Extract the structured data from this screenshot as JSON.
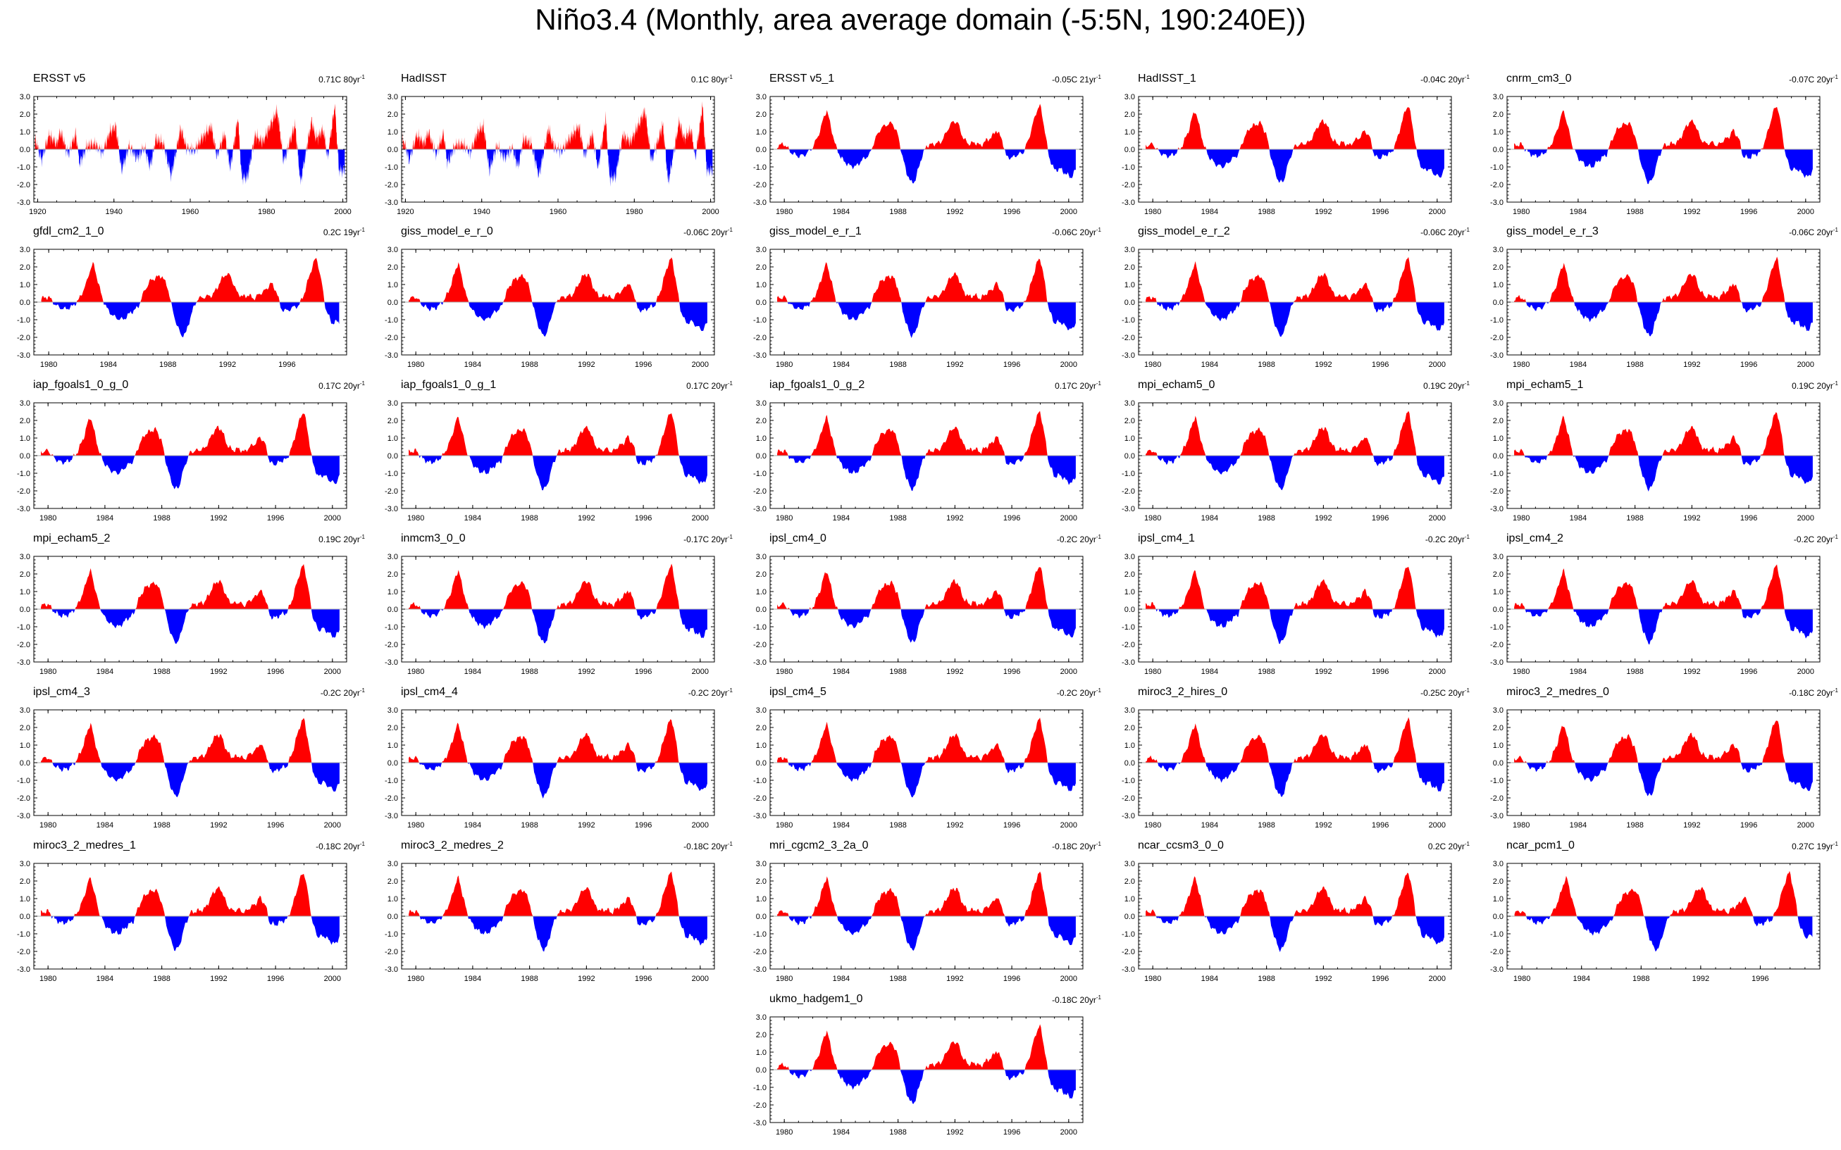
{
  "title": "Niño3.4 (Monthly, area average domain (-5:5N, 190:240E))",
  "colors": {
    "positive": "#ff0000",
    "negative": "#0000ff",
    "axis": "#000000",
    "zero": "#aaaaaa"
  },
  "chart_data": [
    {
      "type": "area",
      "title": "ERSST v5",
      "trend": "0.71C 80yr",
      "trend_unit": "-1",
      "xlim": [
        1919,
        2001
      ],
      "xticks": [
        "1920",
        "1940",
        "1960",
        "1980",
        "2000"
      ],
      "ylim": [
        -3,
        3
      ],
      "yticks": [
        "3.0",
        "2.0",
        "1.0",
        "0.0",
        "-1.0",
        "-2.0",
        "-3.0"
      ],
      "series": "nino34_1920_2000"
    },
    {
      "type": "area",
      "title": "HadISST",
      "trend": "0.1C 80yr",
      "trend_unit": "-1",
      "xlim": [
        1919,
        2001
      ],
      "xticks": [
        "1920",
        "1940",
        "1960",
        "1980",
        "2000"
      ],
      "ylim": [
        -3,
        3
      ],
      "yticks": [
        "3.0",
        "2.0",
        "1.0",
        "0.0",
        "-1.0",
        "-2.0",
        "-3.0"
      ],
      "series": "nino34_1920_2000"
    },
    {
      "type": "area",
      "title": "ERSST v5_1",
      "trend": "-0.05C 21yr",
      "trend_unit": "-1",
      "xlim": [
        1979,
        2001
      ],
      "xticks": [
        "1980",
        "1984",
        "1988",
        "1992",
        "1996",
        "2000"
      ],
      "ylim": [
        -3,
        3
      ],
      "yticks": [
        "3.0",
        "2.0",
        "1.0",
        "0.0",
        "-1.0",
        "-2.0",
        "-3.0"
      ],
      "series": "nino34_1980_2000"
    },
    {
      "type": "area",
      "title": "HadISST_1",
      "trend": "-0.04C 20yr",
      "trend_unit": "-1",
      "xlim": [
        1979,
        2001
      ],
      "xticks": [
        "1980",
        "1984",
        "1988",
        "1992",
        "1996",
        "2000"
      ],
      "ylim": [
        -3,
        3
      ],
      "yticks": [
        "3.0",
        "2.0",
        "1.0",
        "0.0",
        "-1.0",
        "-2.0",
        "-3.0"
      ],
      "series": "nino34_1980_2000"
    },
    {
      "type": "area",
      "title": "cnrm_cm3_0",
      "trend": "-0.07C 20yr",
      "trend_unit": "-1",
      "xlim": [
        1979,
        2001
      ],
      "xticks": [
        "1980",
        "1984",
        "1988",
        "1992",
        "1996",
        "2000"
      ],
      "ylim": [
        -3,
        3
      ],
      "yticks": [
        "3.0",
        "2.0",
        "1.0",
        "0.0",
        "-1.0",
        "-2.0",
        "-3.0"
      ],
      "series": "nino34_1980_2000"
    },
    {
      "type": "area",
      "title": "gfdl_cm2_1_0",
      "trend": "0.2C 19yr",
      "trend_unit": "-1",
      "xlim": [
        1979,
        2000
      ],
      "xticks": [
        "1980",
        "1984",
        "1988",
        "1992",
        "1996"
      ],
      "ylim": [
        -3,
        3
      ],
      "yticks": [
        "3.0",
        "2.0",
        "1.0",
        "0.0",
        "-1.0",
        "-2.0",
        "-3.0"
      ],
      "series": "nino34_1980_2000"
    },
    {
      "type": "area",
      "title": "giss_model_e_r_0",
      "trend": "-0.06C 20yr",
      "trend_unit": "-1",
      "xlim": [
        1979,
        2001
      ],
      "xticks": [
        "1980",
        "1984",
        "1988",
        "1992",
        "1996",
        "2000"
      ],
      "ylim": [
        -3,
        3
      ],
      "yticks": [
        "3.0",
        "2.0",
        "1.0",
        "0.0",
        "-1.0",
        "-2.0",
        "-3.0"
      ],
      "series": "nino34_1980_2000"
    },
    {
      "type": "area",
      "title": "giss_model_e_r_1",
      "trend": "-0.06C 20yr",
      "trend_unit": "-1",
      "xlim": [
        1979,
        2001
      ],
      "xticks": [
        "1980",
        "1984",
        "1988",
        "1992",
        "1996",
        "2000"
      ],
      "ylim": [
        -3,
        3
      ],
      "yticks": [
        "3.0",
        "2.0",
        "1.0",
        "0.0",
        "-1.0",
        "-2.0",
        "-3.0"
      ],
      "series": "nino34_1980_2000"
    },
    {
      "type": "area",
      "title": "giss_model_e_r_2",
      "trend": "-0.06C 20yr",
      "trend_unit": "-1",
      "xlim": [
        1979,
        2001
      ],
      "xticks": [
        "1980",
        "1984",
        "1988",
        "1992",
        "1996",
        "2000"
      ],
      "ylim": [
        -3,
        3
      ],
      "yticks": [
        "3.0",
        "2.0",
        "1.0",
        "0.0",
        "-1.0",
        "-2.0",
        "-3.0"
      ],
      "series": "nino34_1980_2000"
    },
    {
      "type": "area",
      "title": "giss_model_e_r_3",
      "trend": "-0.06C 20yr",
      "trend_unit": "-1",
      "xlim": [
        1979,
        2001
      ],
      "xticks": [
        "1980",
        "1984",
        "1988",
        "1992",
        "1996",
        "2000"
      ],
      "ylim": [
        -3,
        3
      ],
      "yticks": [
        "3.0",
        "2.0",
        "1.0",
        "0.0",
        "-1.0",
        "-2.0",
        "-3.0"
      ],
      "series": "nino34_1980_2000"
    },
    {
      "type": "area",
      "title": "iap_fgoals1_0_g_0",
      "trend": "0.17C 20yr",
      "trend_unit": "-1",
      "xlim": [
        1979,
        2001
      ],
      "xticks": [
        "1980",
        "1984",
        "1988",
        "1992",
        "1996",
        "2000"
      ],
      "ylim": [
        -3,
        3
      ],
      "yticks": [
        "3.0",
        "2.0",
        "1.0",
        "0.0",
        "-1.0",
        "-2.0",
        "-3.0"
      ],
      "series": "nino34_1980_2000"
    },
    {
      "type": "area",
      "title": "iap_fgoals1_0_g_1",
      "trend": "0.17C 20yr",
      "trend_unit": "-1",
      "xlim": [
        1979,
        2001
      ],
      "xticks": [
        "1980",
        "1984",
        "1988",
        "1992",
        "1996",
        "2000"
      ],
      "ylim": [
        -3,
        3
      ],
      "yticks": [
        "3.0",
        "2.0",
        "1.0",
        "0.0",
        "-1.0",
        "-2.0",
        "-3.0"
      ],
      "series": "nino34_1980_2000"
    },
    {
      "type": "area",
      "title": "iap_fgoals1_0_g_2",
      "trend": "0.17C 20yr",
      "trend_unit": "-1",
      "xlim": [
        1979,
        2001
      ],
      "xticks": [
        "1980",
        "1984",
        "1988",
        "1992",
        "1996",
        "2000"
      ],
      "ylim": [
        -3,
        3
      ],
      "yticks": [
        "3.0",
        "2.0",
        "1.0",
        "0.0",
        "-1.0",
        "-2.0",
        "-3.0"
      ],
      "series": "nino34_1980_2000"
    },
    {
      "type": "area",
      "title": "mpi_echam5_0",
      "trend": "0.19C 20yr",
      "trend_unit": "-1",
      "xlim": [
        1979,
        2001
      ],
      "xticks": [
        "1980",
        "1984",
        "1988",
        "1992",
        "1996",
        "2000"
      ],
      "ylim": [
        -3,
        3
      ],
      "yticks": [
        "3.0",
        "2.0",
        "1.0",
        "0.0",
        "-1.0",
        "-2.0",
        "-3.0"
      ],
      "series": "nino34_1980_2000"
    },
    {
      "type": "area",
      "title": "mpi_echam5_1",
      "trend": "0.19C 20yr",
      "trend_unit": "-1",
      "xlim": [
        1979,
        2001
      ],
      "xticks": [
        "1980",
        "1984",
        "1988",
        "1992",
        "1996",
        "2000"
      ],
      "ylim": [
        -3,
        3
      ],
      "yticks": [
        "3.0",
        "2.0",
        "1.0",
        "0.0",
        "-1.0",
        "-2.0",
        "-3.0"
      ],
      "series": "nino34_1980_2000"
    },
    {
      "type": "area",
      "title": "mpi_echam5_2",
      "trend": "0.19C 20yr",
      "trend_unit": "-1",
      "xlim": [
        1979,
        2001
      ],
      "xticks": [
        "1980",
        "1984",
        "1988",
        "1992",
        "1996",
        "2000"
      ],
      "ylim": [
        -3,
        3
      ],
      "yticks": [
        "3.0",
        "2.0",
        "1.0",
        "0.0",
        "-1.0",
        "-2.0",
        "-3.0"
      ],
      "series": "nino34_1980_2000"
    },
    {
      "type": "area",
      "title": "inmcm3_0_0",
      "trend": "-0.17C 20yr",
      "trend_unit": "-1",
      "xlim": [
        1979,
        2001
      ],
      "xticks": [
        "1980",
        "1984",
        "1988",
        "1992",
        "1996",
        "2000"
      ],
      "ylim": [
        -3,
        3
      ],
      "yticks": [
        "3.0",
        "2.0",
        "1.0",
        "0.0",
        "-1.0",
        "-2.0",
        "-3.0"
      ],
      "series": "nino34_1980_2000"
    },
    {
      "type": "area",
      "title": "ipsl_cm4_0",
      "trend": "-0.2C 20yr",
      "trend_unit": "-1",
      "xlim": [
        1979,
        2001
      ],
      "xticks": [
        "1980",
        "1984",
        "1988",
        "1992",
        "1996",
        "2000"
      ],
      "ylim": [
        -3,
        3
      ],
      "yticks": [
        "3.0",
        "2.0",
        "1.0",
        "0.0",
        "-1.0",
        "-2.0",
        "-3.0"
      ],
      "series": "nino34_1980_2000"
    },
    {
      "type": "area",
      "title": "ipsl_cm4_1",
      "trend": "-0.2C 20yr",
      "trend_unit": "-1",
      "xlim": [
        1979,
        2001
      ],
      "xticks": [
        "1980",
        "1984",
        "1988",
        "1992",
        "1996",
        "2000"
      ],
      "ylim": [
        -3,
        3
      ],
      "yticks": [
        "3.0",
        "2.0",
        "1.0",
        "0.0",
        "-1.0",
        "-2.0",
        "-3.0"
      ],
      "series": "nino34_1980_2000"
    },
    {
      "type": "area",
      "title": "ipsl_cm4_2",
      "trend": "-0.2C 20yr",
      "trend_unit": "-1",
      "xlim": [
        1979,
        2001
      ],
      "xticks": [
        "1980",
        "1984",
        "1988",
        "1992",
        "1996",
        "2000"
      ],
      "ylim": [
        -3,
        3
      ],
      "yticks": [
        "3.0",
        "2.0",
        "1.0",
        "0.0",
        "-1.0",
        "-2.0",
        "-3.0"
      ],
      "series": "nino34_1980_2000"
    },
    {
      "type": "area",
      "title": "ipsl_cm4_3",
      "trend": "-0.2C 20yr",
      "trend_unit": "-1",
      "xlim": [
        1979,
        2001
      ],
      "xticks": [
        "1980",
        "1984",
        "1988",
        "1992",
        "1996",
        "2000"
      ],
      "ylim": [
        -3,
        3
      ],
      "yticks": [
        "3.0",
        "2.0",
        "1.0",
        "0.0",
        "-1.0",
        "-2.0",
        "-3.0"
      ],
      "series": "nino34_1980_2000"
    },
    {
      "type": "area",
      "title": "ipsl_cm4_4",
      "trend": "-0.2C 20yr",
      "trend_unit": "-1",
      "xlim": [
        1979,
        2001
      ],
      "xticks": [
        "1980",
        "1984",
        "1988",
        "1992",
        "1996",
        "2000"
      ],
      "ylim": [
        -3,
        3
      ],
      "yticks": [
        "3.0",
        "2.0",
        "1.0",
        "0.0",
        "-1.0",
        "-2.0",
        "-3.0"
      ],
      "series": "nino34_1980_2000"
    },
    {
      "type": "area",
      "title": "ipsl_cm4_5",
      "trend": "-0.2C 20yr",
      "trend_unit": "-1",
      "xlim": [
        1979,
        2001
      ],
      "xticks": [
        "1980",
        "1984",
        "1988",
        "1992",
        "1996",
        "2000"
      ],
      "ylim": [
        -3,
        3
      ],
      "yticks": [
        "3.0",
        "2.0",
        "1.0",
        "0.0",
        "-1.0",
        "-2.0",
        "-3.0"
      ],
      "series": "nino34_1980_2000"
    },
    {
      "type": "area",
      "title": "miroc3_2_hires_0",
      "trend": "-0.25C 20yr",
      "trend_unit": "-1",
      "xlim": [
        1979,
        2001
      ],
      "xticks": [
        "1980",
        "1984",
        "1988",
        "1992",
        "1996",
        "2000"
      ],
      "ylim": [
        -3,
        3
      ],
      "yticks": [
        "3.0",
        "2.0",
        "1.0",
        "0.0",
        "-1.0",
        "-2.0",
        "-3.0"
      ],
      "series": "nino34_1980_2000"
    },
    {
      "type": "area",
      "title": "miroc3_2_medres_0",
      "trend": "-0.18C 20yr",
      "trend_unit": "-1",
      "xlim": [
        1979,
        2001
      ],
      "xticks": [
        "1980",
        "1984",
        "1988",
        "1992",
        "1996",
        "2000"
      ],
      "ylim": [
        -3,
        3
      ],
      "yticks": [
        "3.0",
        "2.0",
        "1.0",
        "0.0",
        "-1.0",
        "-2.0",
        "-3.0"
      ],
      "series": "nino34_1980_2000"
    },
    {
      "type": "area",
      "title": "miroc3_2_medres_1",
      "trend": "-0.18C 20yr",
      "trend_unit": "-1",
      "xlim": [
        1979,
        2001
      ],
      "xticks": [
        "1980",
        "1984",
        "1988",
        "1992",
        "1996",
        "2000"
      ],
      "ylim": [
        -3,
        3
      ],
      "yticks": [
        "3.0",
        "2.0",
        "1.0",
        "0.0",
        "-1.0",
        "-2.0",
        "-3.0"
      ],
      "series": "nino34_1980_2000"
    },
    {
      "type": "area",
      "title": "miroc3_2_medres_2",
      "trend": "-0.18C 20yr",
      "trend_unit": "-1",
      "xlim": [
        1979,
        2001
      ],
      "xticks": [
        "1980",
        "1984",
        "1988",
        "1992",
        "1996",
        "2000"
      ],
      "ylim": [
        -3,
        3
      ],
      "yticks": [
        "3.0",
        "2.0",
        "1.0",
        "0.0",
        "-1.0",
        "-2.0",
        "-3.0"
      ],
      "series": "nino34_1980_2000"
    },
    {
      "type": "area",
      "title": "mri_cgcm2_3_2a_0",
      "trend": "-0.18C 20yr",
      "trend_unit": "-1",
      "xlim": [
        1979,
        2001
      ],
      "xticks": [
        "1980",
        "1984",
        "1988",
        "1992",
        "1996",
        "2000"
      ],
      "ylim": [
        -3,
        3
      ],
      "yticks": [
        "3.0",
        "2.0",
        "1.0",
        "0.0",
        "-1.0",
        "-2.0",
        "-3.0"
      ],
      "series": "nino34_1980_2000"
    },
    {
      "type": "area",
      "title": "ncar_ccsm3_0_0",
      "trend": "0.2C 20yr",
      "trend_unit": "-1",
      "xlim": [
        1979,
        2001
      ],
      "xticks": [
        "1980",
        "1984",
        "1988",
        "1992",
        "1996",
        "2000"
      ],
      "ylim": [
        -3,
        3
      ],
      "yticks": [
        "3.0",
        "2.0",
        "1.0",
        "0.0",
        "-1.0",
        "-2.0",
        "-3.0"
      ],
      "series": "nino34_1980_2000"
    },
    {
      "type": "area",
      "title": "ncar_pcm1_0",
      "trend": "0.27C 19yr",
      "trend_unit": "-1",
      "xlim": [
        1979,
        2000
      ],
      "xticks": [
        "1980",
        "1984",
        "1988",
        "1992",
        "1996"
      ],
      "ylim": [
        -3,
        3
      ],
      "yticks": [
        "3.0",
        "2.0",
        "1.0",
        "0.0",
        "-1.0",
        "-2.0",
        "-3.0"
      ],
      "series": "nino34_1980_2000"
    },
    {
      "type": "area",
      "title": "ukmo_hadgem1_0",
      "trend": "-0.18C 20yr",
      "trend_unit": "-1",
      "xlim": [
        1979,
        2001
      ],
      "xticks": [
        "1980",
        "1984",
        "1988",
        "1992",
        "1996",
        "2000"
      ],
      "ylim": [
        -3,
        3
      ],
      "yticks": [
        "3.0",
        "2.0",
        "1.0",
        "0.0",
        "-1.0",
        "-2.0",
        "-3.0"
      ],
      "series": "nino34_1980_2000"
    }
  ],
  "series_data": {
    "nino34_1980_2000": {
      "x": [
        1979.5,
        1980.0,
        1980.5,
        1981.0,
        1981.5,
        1982.0,
        1982.5,
        1982.8,
        1983.0,
        1983.3,
        1983.6,
        1984.0,
        1984.5,
        1985.0,
        1985.5,
        1986.0,
        1986.4,
        1986.8,
        1987.2,
        1987.6,
        1988.0,
        1988.3,
        1988.6,
        1988.9,
        1989.2,
        1989.6,
        1990.0,
        1990.5,
        1991.0,
        1991.3,
        1991.6,
        1991.9,
        1992.2,
        1992.6,
        1993.0,
        1993.4,
        1993.8,
        1994.2,
        1994.6,
        1994.9,
        1995.3,
        1995.6,
        1996.0,
        1996.4,
        1996.8,
        1997.2,
        1997.5,
        1997.8,
        1998.0,
        1998.3,
        1998.6,
        1999.0,
        1999.4,
        1999.8,
        2000.2,
        2000.6
      ],
      "y": [
        0.2,
        0.3,
        -0.2,
        -0.4,
        -0.3,
        0.1,
        1.0,
        1.9,
        2.2,
        1.2,
        0.2,
        -0.5,
        -0.9,
        -1.0,
        -0.6,
        -0.3,
        0.6,
        1.2,
        1.4,
        1.5,
        0.8,
        -0.4,
        -1.3,
        -1.9,
        -1.8,
        -0.6,
        0.2,
        0.3,
        0.4,
        0.8,
        1.3,
        1.6,
        1.5,
        0.6,
        0.3,
        0.4,
        0.2,
        0.5,
        0.7,
        1.1,
        0.6,
        -0.4,
        -0.5,
        -0.3,
        -0.2,
        0.6,
        1.5,
        2.3,
        2.5,
        1.2,
        -0.4,
        -1.2,
        -1.1,
        -1.4,
        -1.6,
        -1.0
      ]
    },
    "nino34_1920_2000": {
      "x": [
        1919.5,
        1921.0,
        1923.0,
        1925.0,
        1926.0,
        1928.0,
        1930.0,
        1931.0,
        1933.0,
        1935.0,
        1937.0,
        1939.0,
        1940.5,
        1942.0,
        1944.0,
        1946.0,
        1948.0,
        1949.5,
        1951.0,
        1953.0,
        1955.0,
        1957.5,
        1959.0,
        1961.0,
        1963.0,
        1965.5,
        1967.0,
        1969.0,
        1970.5,
        1972.5,
        1973.5,
        1975.0,
        1977.0,
        1979.0,
        1982.8,
        1984.5,
        1987.5,
        1988.9,
        1991.8,
        1993.0,
        1994.9,
        1996.0,
        1997.9,
        1999.0,
        2000.5
      ],
      "y": [
        0.5,
        -0.6,
        0.8,
        0.3,
        1.0,
        -0.3,
        0.9,
        -0.8,
        0.2,
        0.3,
        -0.2,
        1.0,
        1.3,
        -1.2,
        0.2,
        -0.5,
        0.1,
        -1.0,
        0.6,
        0.3,
        -1.5,
        1.2,
        0.1,
        -0.1,
        0.6,
        1.3,
        -0.4,
        0.9,
        -1.1,
        1.8,
        -1.6,
        -1.6,
        0.8,
        0.4,
        2.2,
        -0.7,
        1.4,
        -1.9,
        1.6,
        0.6,
        1.1,
        -0.5,
        2.5,
        -1.2,
        -1.2
      ]
    }
  }
}
